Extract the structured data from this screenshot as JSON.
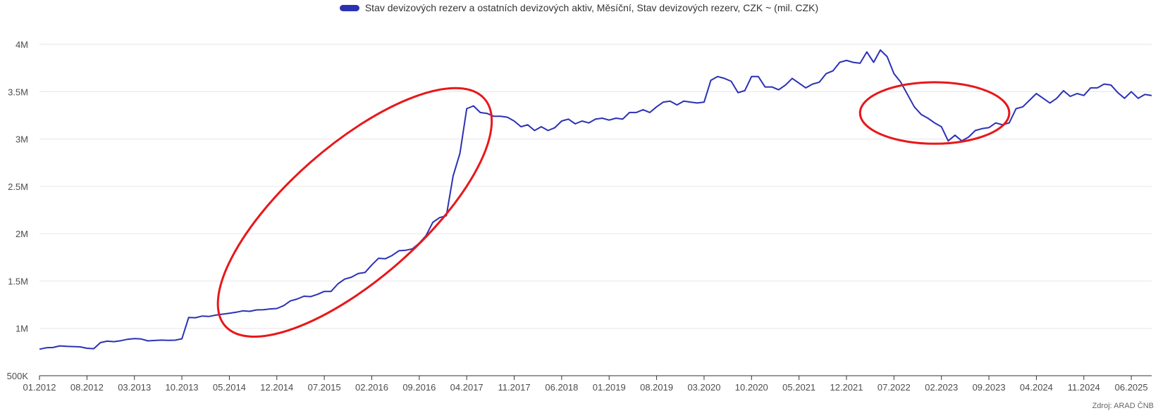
{
  "chart_data": {
    "type": "line",
    "legend": {
      "label": "Stav devizových rezerv a ostatních devizových aktiv, Měsíční, Stav devizových rezerv, CZK ~ (mil. CZK)",
      "placement": "top-center"
    },
    "source": "Zdroj: ARAD ČNB",
    "ylim": [
      500000,
      4000000
    ],
    "y_ticks": [
      {
        "value": 500000,
        "label": "500K"
      },
      {
        "value": 1000000,
        "label": "1M"
      },
      {
        "value": 1500000,
        "label": "1.5M"
      },
      {
        "value": 2000000,
        "label": "2M"
      },
      {
        "value": 2500000,
        "label": "2.5M"
      },
      {
        "value": 3000000,
        "label": "3M"
      },
      {
        "value": 3500000,
        "label": "3.5M"
      },
      {
        "value": 4000000,
        "label": "4M"
      }
    ],
    "x_tick_labels": [
      "01.2012",
      "08.2012",
      "03.2013",
      "10.2013",
      "05.2014",
      "12.2014",
      "07.2015",
      "02.2016",
      "09.2016",
      "04.2017",
      "11.2017",
      "06.2018",
      "01.2019",
      "08.2019",
      "03.2020",
      "10.2020",
      "05.2021",
      "12.2021",
      "07.2022",
      "02.2023",
      "09.2023",
      "04.2024",
      "11.2024",
      "06.2025"
    ],
    "x_start": "01.2012",
    "x_end": "07.2025",
    "grid": "horizontal",
    "colors": {
      "line": "#2b31b5",
      "annotation": "#e8171a",
      "grid": "#e6e6e6",
      "axis": "#333333"
    },
    "annotations": [
      {
        "type": "ellipse",
        "from": "04.2014",
        "to": "07.2017",
        "ymin": 1000000,
        "ymax": 3450000
      },
      {
        "type": "ellipse",
        "from": "02.2022",
        "to": "12.2023",
        "ymin": 2950000,
        "ymax": 3600000
      }
    ],
    "series": [
      {
        "values": [
          780000,
          795000,
          798000,
          815000,
          810000,
          808000,
          805000,
          790000,
          785000,
          850000,
          865000,
          860000,
          870000,
          885000,
          892000,
          888000,
          868000,
          872000,
          876000,
          874000,
          875000,
          890000,
          1115000,
          1112000,
          1130000,
          1126000,
          1140000,
          1150000,
          1160000,
          1170000,
          1185000,
          1180000,
          1195000,
          1197000,
          1205000,
          1210000,
          1240000,
          1290000,
          1310000,
          1340000,
          1335000,
          1360000,
          1390000,
          1390000,
          1470000,
          1520000,
          1540000,
          1580000,
          1590000,
          1670000,
          1740000,
          1735000,
          1770000,
          1820000,
          1825000,
          1840000,
          1900000,
          1980000,
          2120000,
          2170000,
          2190000,
          2610000,
          2850000,
          3320000,
          3350000,
          3280000,
          3270000,
          3240000,
          3240000,
          3230000,
          3190000,
          3130000,
          3150000,
          3090000,
          3130000,
          3090000,
          3120000,
          3190000,
          3210000,
          3160000,
          3190000,
          3170000,
          3210000,
          3220000,
          3200000,
          3220000,
          3210000,
          3280000,
          3280000,
          3310000,
          3280000,
          3340000,
          3390000,
          3400000,
          3360000,
          3400000,
          3390000,
          3380000,
          3390000,
          3620000,
          3660000,
          3640000,
          3610000,
          3490000,
          3510000,
          3660000,
          3660000,
          3550000,
          3550000,
          3520000,
          3570000,
          3640000,
          3590000,
          3540000,
          3580000,
          3600000,
          3690000,
          3720000,
          3810000,
          3830000,
          3810000,
          3800000,
          3920000,
          3810000,
          3940000,
          3870000,
          3690000,
          3600000,
          3470000,
          3340000,
          3260000,
          3220000,
          3170000,
          3130000,
          2980000,
          3040000,
          2980000,
          3020000,
          3090000,
          3110000,
          3120000,
          3170000,
          3150000,
          3170000,
          3320000,
          3340000,
          3410000,
          3480000,
          3430000,
          3380000,
          3430000,
          3510000,
          3450000,
          3480000,
          3460000,
          3540000,
          3540000,
          3580000,
          3570000,
          3490000,
          3430000,
          3500000,
          3430000,
          3470000,
          3460000
        ]
      }
    ]
  }
}
